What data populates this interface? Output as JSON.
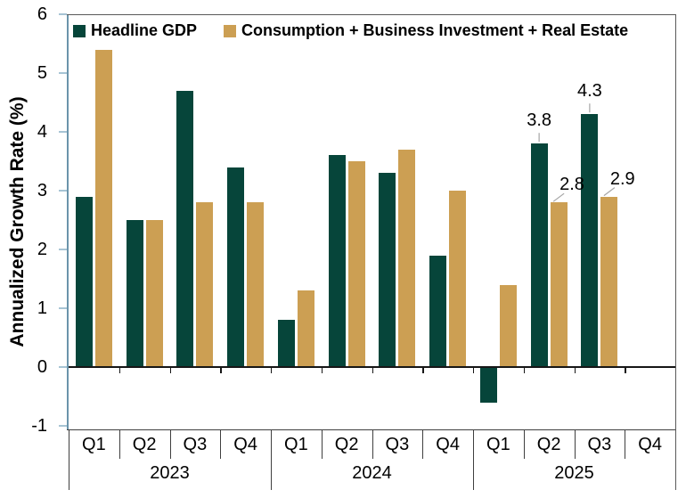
{
  "chart_data": {
    "type": "bar",
    "title": "",
    "ylabel": "Annualized Growth Rate (%)",
    "ylim": [
      -1,
      6
    ],
    "yticks": [
      6,
      5,
      4,
      3,
      2,
      1,
      0,
      -1
    ],
    "x_groups": [
      {
        "year": "2023",
        "quarters": [
          "Q1",
          "Q2",
          "Q3",
          "Q4"
        ]
      },
      {
        "year": "2024",
        "quarters": [
          "Q1",
          "Q2",
          "Q3",
          "Q4"
        ]
      },
      {
        "year": "2025",
        "quarters": [
          "Q1",
          "Q2",
          "Q3",
          "Q4"
        ]
      }
    ],
    "series": [
      {
        "name": "Headline GDP",
        "color": "#06453A",
        "values": [
          2.9,
          2.5,
          4.7,
          3.4,
          0.8,
          3.6,
          3.3,
          1.9,
          -0.6,
          3.8,
          4.3,
          null
        ]
      },
      {
        "name": "Consumption + Business Investment + Real Estate",
        "color": "#CC9F53",
        "values": [
          5.4,
          2.5,
          2.8,
          2.8,
          1.3,
          3.5,
          3.7,
          3.0,
          1.4,
          2.8,
          2.9,
          null
        ]
      }
    ],
    "data_labels": [
      {
        "text": "3.8",
        "series": 0,
        "index": 9,
        "placement": "above"
      },
      {
        "text": "2.8",
        "series": 1,
        "index": 9,
        "placement": "above-right"
      },
      {
        "text": "4.3",
        "series": 0,
        "index": 10,
        "placement": "above"
      },
      {
        "text": "2.9",
        "series": 1,
        "index": 10,
        "placement": "above-right"
      }
    ],
    "legend_position": "top-inside",
    "grid": false
  },
  "colors": {
    "headline_gdp": "#06453A",
    "consumption": "#CC9F53",
    "value_axis_line": "#6B94AB",
    "value_axis_tick": "#A7C4D4",
    "plot_border": "#595959",
    "zero_line": "#161616",
    "category_grid": "#3F3F3F",
    "leader_line": "#A6A6A6",
    "background": "#FFFFFF"
  }
}
